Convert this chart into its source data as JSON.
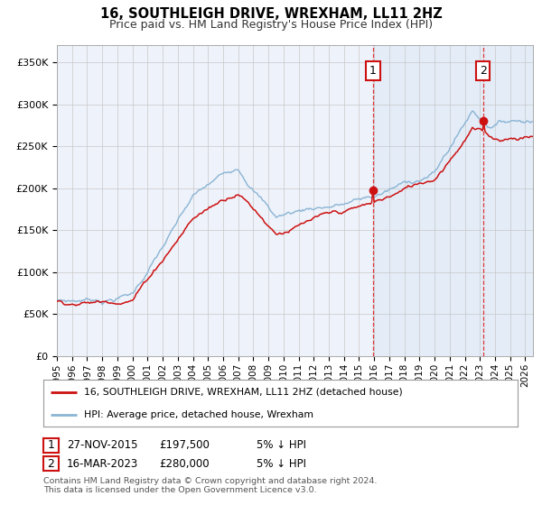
{
  "title": "16, SOUTHLEIGH DRIVE, WREXHAM, LL11 2HZ",
  "subtitle": "Price paid vs. HM Land Registry's House Price Index (HPI)",
  "ylabel_ticks": [
    "£0",
    "£50K",
    "£100K",
    "£150K",
    "£200K",
    "£250K",
    "£300K",
    "£350K"
  ],
  "ylim": [
    0,
    370000
  ],
  "xlim_start": 1995.0,
  "xlim_end": 2026.5,
  "transaction1_x": 2015.92,
  "transaction1_y": 197500,
  "transaction2_x": 2023.21,
  "transaction2_y": 280000,
  "legend_line1": "16, SOUTHLEIGH DRIVE, WREXHAM, LL11 2HZ (detached house)",
  "legend_line2": "HPI: Average price, detached house, Wrexham",
  "footer1": "Contains HM Land Registry data © Crown copyright and database right 2024.",
  "footer2": "This data is licensed under the Open Government Licence v3.0.",
  "note1_date": "27-NOV-2015",
  "note1_price": "£197,500",
  "note1_hpi": "5% ↓ HPI",
  "note2_date": "16-MAR-2023",
  "note2_price": "£280,000",
  "note2_hpi": "5% ↓ HPI",
  "hpi_color": "#8ab4d4",
  "price_color": "#cc1111",
  "shade_color": "#dde8f5",
  "background_color": "#eef2fa",
  "grid_color": "#c8c8c8"
}
